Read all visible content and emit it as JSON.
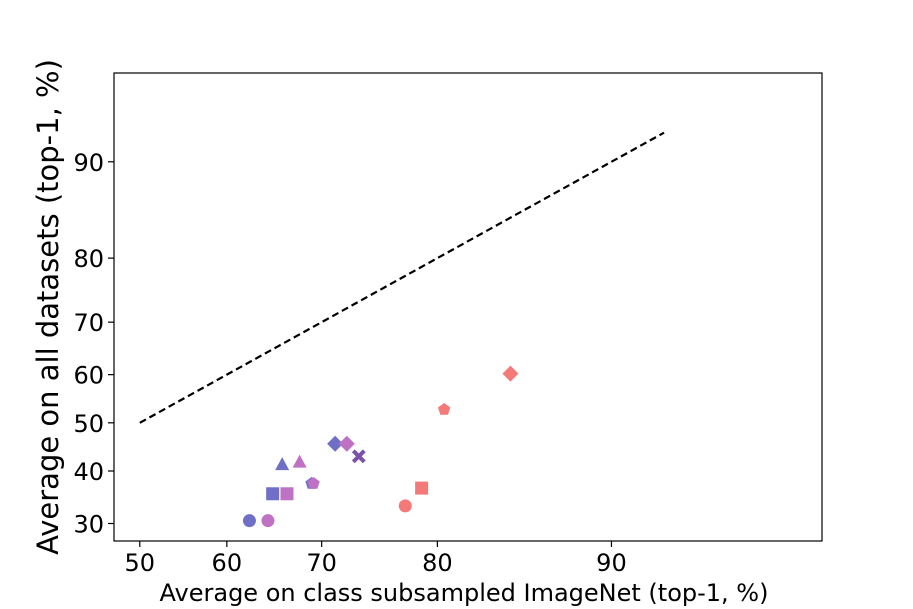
{
  "chart_data": {
    "type": "scatter",
    "title": "",
    "xlabel": "Average on class subsampled ImageNet (top-1, %)",
    "ylabel": "Average on all datasets (top-1, %)",
    "xlim": [
      47,
      96
    ],
    "ylim": [
      27,
      95
    ],
    "x_scale": "logit",
    "y_scale": "logit",
    "x_ticks": [
      50,
      60,
      70,
      80,
      90
    ],
    "y_ticks": [
      30,
      40,
      50,
      60,
      70,
      80,
      90
    ],
    "grid": false,
    "legend": "none",
    "reference_line": {
      "style": "dashed",
      "color": "#000000",
      "x": [
        50,
        92
      ],
      "y": [
        50,
        92
      ]
    },
    "points": [
      {
        "x": 62.5,
        "y": 30.5,
        "marker": "circle",
        "color": "#6f6fc8"
      },
      {
        "x": 64.5,
        "y": 30.5,
        "marker": "circle",
        "color": "#bf71c4"
      },
      {
        "x": 77.5,
        "y": 33.2,
        "marker": "circle",
        "color": "#f47a7a"
      },
      {
        "x": 65.0,
        "y": 35.5,
        "marker": "square",
        "color": "#6f6fc8"
      },
      {
        "x": 66.5,
        "y": 35.5,
        "marker": "square",
        "color": "#bf71c4"
      },
      {
        "x": 78.8,
        "y": 36.6,
        "marker": "square",
        "color": "#f47a7a"
      },
      {
        "x": 66.0,
        "y": 41.3,
        "marker": "triangle",
        "color": "#6f6fc8"
      },
      {
        "x": 67.8,
        "y": 41.8,
        "marker": "triangle",
        "color": "#bf71c4"
      },
      {
        "x": 69.0,
        "y": 37.5,
        "marker": "pentagon",
        "color": "#6f6fc8"
      },
      {
        "x": 69.2,
        "y": 37.5,
        "marker": "pentagon",
        "color": "#bf71c4"
      },
      {
        "x": 80.5,
        "y": 52.8,
        "marker": "pentagon",
        "color": "#f47a7a"
      },
      {
        "x": 71.3,
        "y": 45.6,
        "marker": "diamond",
        "color": "#6f6fc8"
      },
      {
        "x": 72.4,
        "y": 45.6,
        "marker": "diamond",
        "color": "#bf71c4"
      },
      {
        "x": 84.9,
        "y": 60.2,
        "marker": "diamond",
        "color": "#f47a7a"
      },
      {
        "x": 73.5,
        "y": 43.0,
        "marker": "x",
        "color": "#7a52a8"
      }
    ]
  }
}
